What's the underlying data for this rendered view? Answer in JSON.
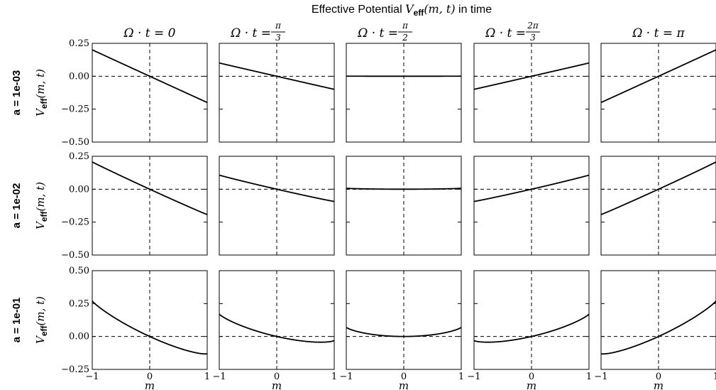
{
  "chart_data": {
    "type": "line",
    "title_prefix": "Effective Potential ",
    "title_math": "V",
    "title_sub": "eff",
    "title_args": "(m, t)",
    "title_suffix": " in time",
    "column_titles": [
      {
        "lhs": "Ω · t = ",
        "num": "",
        "den": "",
        "plain": "0"
      },
      {
        "lhs": "Ω · t = ",
        "num": "π",
        "den": "3",
        "plain": ""
      },
      {
        "lhs": "Ω · t = ",
        "num": "π",
        "den": "2",
        "plain": ""
      },
      {
        "lhs": "Ω · t = ",
        "num": "2π",
        "den": "3",
        "plain": ""
      },
      {
        "lhs": "Ω · t = ",
        "num": "",
        "den": "",
        "plain": "π"
      }
    ],
    "rows": [
      {
        "label": "a = 1e-03",
        "a": 0.001,
        "ylim": [
          -0.5,
          0.25
        ],
        "yticks": [
          "0.25",
          "0.00",
          "−0.25",
          "−0.50"
        ],
        "ytick_values": [
          0.25,
          0.0,
          -0.25,
          -0.5
        ]
      },
      {
        "label": "a = 1e-02",
        "a": 0.01,
        "ylim": [
          -0.5,
          0.25
        ],
        "yticks": [
          "0.25",
          "0.00",
          "−0.25",
          "−0.50"
        ],
        "ytick_values": [
          0.25,
          0.0,
          -0.25,
          -0.5
        ]
      },
      {
        "label": "a = 1e-01",
        "a": 0.1,
        "ylim": [
          -0.25,
          0.5
        ],
        "yticks": [
          "0.50",
          "0.25",
          "0.00",
          "−0.25"
        ],
        "ytick_values": [
          0.5,
          0.25,
          0.0,
          -0.25
        ]
      }
    ],
    "ylabel_math": "V",
    "ylabel_sub": "eff",
    "ylabel_args": "(m, t)",
    "xlabel": "m",
    "xlim": [
      -1,
      1
    ],
    "xticks": [
      "−1",
      "0",
      "1"
    ],
    "xtick_values": [
      -1,
      0,
      1
    ],
    "phases": [
      0,
      1.0471975512,
      1.5707963268,
      2.0943951024,
      3.1415926536
    ],
    "omega_t_labels": [
      "0",
      "π/3",
      "π/2",
      "2π/3",
      "π"
    ],
    "reference_lines": {
      "x": 0,
      "y": 0,
      "style": "dashed"
    },
    "grid": false,
    "legend": "none"
  }
}
